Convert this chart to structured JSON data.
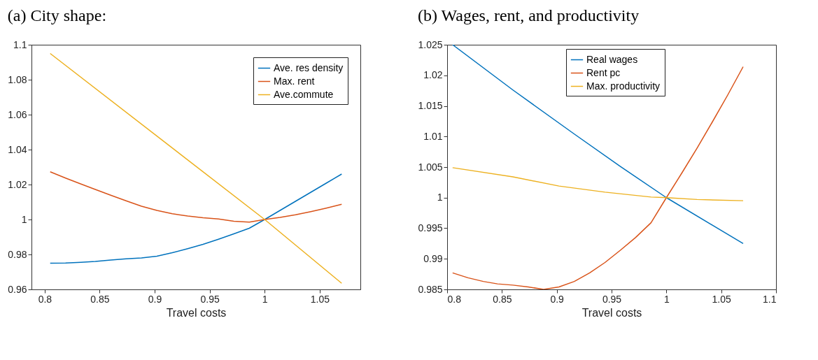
{
  "chart_data": [
    {
      "type": "line",
      "title": "(a)   City shape:",
      "xlabel": "Travel costs",
      "xlim": [
        0.788,
        1.087
      ],
      "xticks": [
        0.8,
        0.85,
        0.9,
        0.95,
        1,
        1.05
      ],
      "ylim": [
        0.96,
        1.1
      ],
      "yticks": [
        0.96,
        0.98,
        1,
        1.02,
        1.04,
        1.06,
        1.08,
        1.1
      ],
      "legend": "top right",
      "grid": false,
      "x": [
        0.805,
        0.819,
        0.833,
        0.846,
        0.86,
        0.874,
        0.888,
        0.902,
        0.916,
        0.93,
        0.944,
        0.958,
        0.972,
        0.986,
        1.0,
        1.014,
        1.028,
        1.042,
        1.056,
        1.07
      ],
      "series": [
        {
          "name": "Ave. res density",
          "color": "#0072bd",
          "values": [
            0.975,
            0.9751,
            0.9755,
            0.976,
            0.9768,
            0.9775,
            0.978,
            0.979,
            0.981,
            0.9833,
            0.9858,
            0.9887,
            0.9918,
            0.995,
            1.0,
            1.0052,
            1.0104,
            1.0156,
            1.0208,
            1.026
          ]
        },
        {
          "name": "Max. rent",
          "color": "#d95319",
          "values": [
            1.0273,
            1.0237,
            1.0203,
            1.0172,
            1.0139,
            1.0107,
            1.0076,
            1.0052,
            1.0033,
            1.002,
            1.001,
            1.0003,
            0.999,
            0.9985,
            1.0,
            1.0012,
            1.0027,
            1.0045,
            1.0065,
            1.0087
          ]
        },
        {
          "name": "Ave.commute",
          "color": "#edb120",
          "x": [
            0.805,
            1.0,
            1.07
          ],
          "values": [
            1.095,
            1.0,
            0.9635
          ]
        }
      ]
    },
    {
      "type": "line",
      "title": "(b) Wages, rent, and productivity",
      "xlabel": "Travel costs",
      "xlim": [
        0.8,
        1.1
      ],
      "xticks": [
        0.8,
        0.85,
        0.9,
        0.95,
        1,
        1.05,
        1.1
      ],
      "ylim": [
        0.985,
        1.025
      ],
      "yticks": [
        0.985,
        0.99,
        0.995,
        1,
        1.005,
        1.01,
        1.015,
        1.02,
        1.025
      ],
      "legend": "top",
      "grid": false,
      "x": [
        0.805,
        0.819,
        0.833,
        0.846,
        0.86,
        0.874,
        0.888,
        0.902,
        0.916,
        0.93,
        0.944,
        0.958,
        0.972,
        0.986,
        1.0,
        1.014,
        1.028,
        1.042,
        1.056,
        1.07
      ],
      "series": [
        {
          "name": "Real wages",
          "color": "#0072bd",
          "x": [
            0.805,
            0.86,
            0.916,
            0.958,
            1.0,
            1.07
          ],
          "values": [
            1.025,
            1.0176,
            1.0104,
            1.0051,
            1.0,
            0.9925
          ]
        },
        {
          "name": "Rent pc",
          "color": "#d95319",
          "values": [
            0.9877,
            0.9869,
            0.9863,
            0.9859,
            0.9857,
            0.9854,
            0.985,
            0.9854,
            0.9863,
            0.9877,
            0.9894,
            0.9914,
            0.9935,
            0.9959,
            1.0,
            1.004,
            1.0081,
            1.0124,
            1.0168,
            1.0214
          ]
        },
        {
          "name": "Max. productivity",
          "color": "#edb120",
          "x": [
            0.805,
            0.86,
            0.902,
            0.944,
            0.986,
            1.0,
            1.028,
            1.07
          ],
          "values": [
            1.0049,
            1.0034,
            1.0019,
            1.0009,
            1.0001,
            1.0,
            0.9997,
            0.9995
          ]
        }
      ]
    }
  ]
}
